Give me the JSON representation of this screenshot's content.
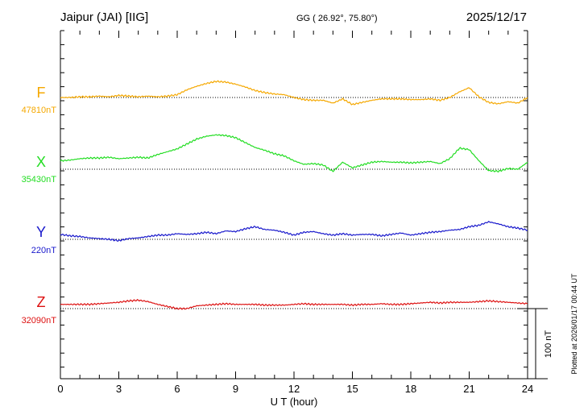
{
  "header": {
    "station": "Jaipur (JAI)  [IIG]",
    "coords": "GG ( 26.92°,  75.80°)",
    "date": "2025/12/17"
  },
  "footer": {
    "plotted": "Plotted at 2026/01/17 00:44 UT"
  },
  "chart_data": {
    "type": "line",
    "xlabel": "U T (hour)",
    "xlim": [
      0,
      24
    ],
    "xticks": [
      0,
      3,
      6,
      9,
      12,
      15,
      18,
      21,
      24
    ],
    "scale_bar_label": "100 nT",
    "scale_bar_nT": 100,
    "grid": false,
    "series": [
      {
        "name": "F",
        "baseline_label": "47810nT",
        "baseline_nT": 47810,
        "color": "#f5a800",
        "x": [
          0,
          0.5,
          1,
          1.5,
          2,
          2.5,
          3,
          3.5,
          4,
          4.5,
          5,
          5.5,
          6,
          6.5,
          7,
          7.5,
          8,
          8.5,
          9,
          9.5,
          10,
          10.5,
          11,
          11.5,
          12,
          12.5,
          13,
          13.5,
          14,
          14.5,
          15,
          15.5,
          16,
          16.5,
          17,
          17.5,
          18,
          18.5,
          19,
          19.5,
          20,
          20.5,
          21,
          21.5,
          22,
          22.5,
          23,
          23.5,
          24
        ],
        "y": [
          47810,
          47810,
          47811,
          47811,
          47812,
          47811,
          47813,
          47812,
          47811,
          47812,
          47811,
          47812,
          47814,
          47821,
          47826,
          47830,
          47833,
          47832,
          47829,
          47825,
          47820,
          47817,
          47815,
          47814,
          47810,
          47807,
          47806,
          47806,
          47802,
          47808,
          47800,
          47803,
          47806,
          47808,
          47808,
          47808,
          47807,
          47807,
          47808,
          47806,
          47810,
          47818,
          47824,
          47811,
          47803,
          47801,
          47804,
          47802,
          47810
        ]
      },
      {
        "name": "X",
        "baseline_label": "35430nT",
        "baseline_nT": 35430,
        "color": "#22dd22",
        "x": [
          0,
          0.5,
          1,
          1.5,
          2,
          2.5,
          3,
          3.5,
          4,
          4.5,
          5,
          5.5,
          6,
          6.5,
          7,
          7.5,
          8,
          8.5,
          9,
          9.5,
          10,
          10.5,
          11,
          11.5,
          12,
          12.5,
          13,
          13.5,
          14,
          14.5,
          15,
          15.5,
          16,
          16.5,
          17,
          17.5,
          18,
          18.5,
          19,
          19.5,
          20,
          20.5,
          21,
          21.5,
          22,
          22.5,
          23,
          23.5,
          24
        ],
        "y": [
          35442,
          35443,
          35445,
          35446,
          35446,
          35447,
          35445,
          35446,
          35447,
          35446,
          35451,
          35455,
          35459,
          35466,
          35473,
          35477,
          35479,
          35478,
          35475,
          35468,
          35461,
          35457,
          35452,
          35449,
          35442,
          35437,
          35438,
          35436,
          35427,
          35440,
          35432,
          35436,
          35440,
          35441,
          35440,
          35440,
          35439,
          35440,
          35441,
          35438,
          35445,
          35460,
          35458,
          35442,
          35428,
          35427,
          35431,
          35430,
          35440
        ]
      },
      {
        "name": "Y",
        "baseline_label": "220nT",
        "baseline_nT": 220,
        "color": "#1818cc",
        "x": [
          0,
          0.5,
          1,
          1.5,
          2,
          2.5,
          3,
          3.5,
          4,
          4.5,
          5,
          5.5,
          6,
          6.5,
          7,
          7.5,
          8,
          8.5,
          9,
          9.5,
          10,
          10.5,
          11,
          11.5,
          12,
          12.5,
          13,
          13.5,
          14,
          14.5,
          15,
          15.5,
          16,
          16.5,
          17,
          17.5,
          18,
          18.5,
          19,
          19.5,
          20,
          20.5,
          21,
          21.5,
          22,
          22.5,
          23,
          23.5,
          24
        ],
        "y": [
          227,
          225,
          224,
          222,
          221,
          220,
          218,
          221,
          222,
          224,
          226,
          226,
          228,
          227,
          228,
          230,
          228,
          232,
          231,
          235,
          238,
          234,
          233,
          230,
          226,
          230,
          231,
          228,
          226,
          228,
          226,
          227,
          227,
          225,
          227,
          229,
          226,
          228,
          230,
          231,
          233,
          234,
          238,
          240,
          245,
          242,
          238,
          236,
          233
        ]
      },
      {
        "name": "Z",
        "baseline_label": "32090nT",
        "baseline_nT": 32090,
        "color": "#dd1111",
        "x": [
          0,
          0.5,
          1,
          1.5,
          2,
          2.5,
          3,
          3.5,
          4,
          4.5,
          5,
          5.5,
          6,
          6.5,
          7,
          7.5,
          8,
          8.5,
          9,
          9.5,
          10,
          10.5,
          11,
          11.5,
          12,
          12.5,
          13,
          13.5,
          14,
          14.5,
          15,
          15.5,
          16,
          16.5,
          17,
          17.5,
          18,
          18.5,
          19,
          19.5,
          20,
          20.5,
          21,
          21.5,
          22,
          22.5,
          23,
          23.5,
          24
        ],
        "y": [
          32096,
          32096,
          32096,
          32096,
          32097,
          32098,
          32099,
          32101,
          32102,
          32100,
          32096,
          32093,
          32090,
          32090,
          32094,
          32095,
          32096,
          32097,
          32096,
          32096,
          32096,
          32095,
          32095,
          32095,
          32096,
          32097,
          32096,
          32096,
          32096,
          32096,
          32095,
          32096,
          32096,
          32097,
          32096,
          32096,
          32097,
          32098,
          32099,
          32098,
          32099,
          32099,
          32099,
          32100,
          32101,
          32100,
          32099,
          32098,
          32097
        ]
      }
    ]
  }
}
